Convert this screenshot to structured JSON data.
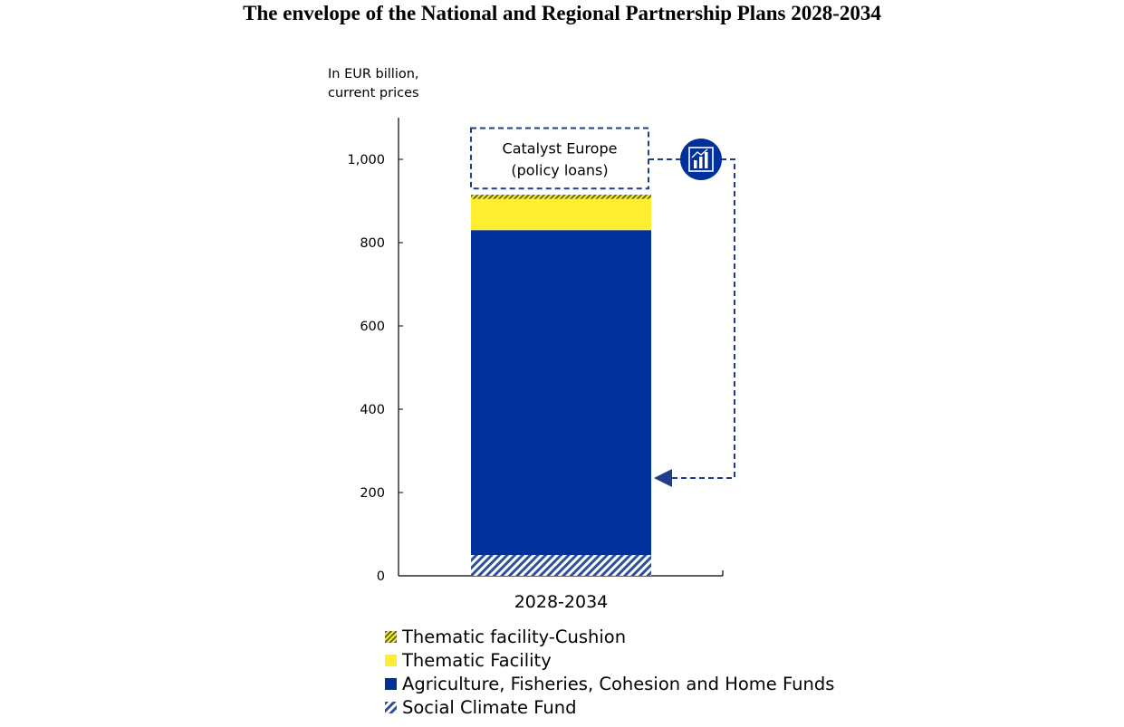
{
  "title": "The envelope of the National and Regional Partnership Plans 2028-2034",
  "unit_line1": "In EUR billion,",
  "unit_line2": "current prices",
  "colors": {
    "navy": "#00309A",
    "yellow": "#FFED31",
    "olive": "#5C6B1A",
    "hatch_blue": "#2F4F9A",
    "dash": "#1F3D8A"
  },
  "icon": "bar-chart-growth-icon",
  "chart_data": {
    "type": "bar",
    "categories": [
      "2028-2034"
    ],
    "ylim": [
      0,
      1100
    ],
    "yticks": [
      0,
      200,
      400,
      600,
      800,
      1000
    ],
    "ytick_labels": [
      "0",
      "200",
      "400",
      "600",
      "800",
      "1,000"
    ],
    "series": [
      {
        "name": "Social Climate Fund",
        "values": [
          50
        ]
      },
      {
        "name": "Agriculture, Fisheries, Cohesion and Home Funds",
        "values": [
          780
        ]
      },
      {
        "name": "Thematic Facility",
        "values": [
          75
        ]
      },
      {
        "name": "Thematic facility-Cushion",
        "values": [
          10
        ]
      }
    ],
    "extra_box": {
      "label_line1": "Catalyst Europe",
      "label_line2": "(policy loans)",
      "from": 930,
      "to": 1075
    }
  },
  "legend": [
    {
      "label": "Thematic facility-Cushion"
    },
    {
      "label": "Thematic Facility"
    },
    {
      "label": "Agriculture, Fisheries, Cohesion and Home Funds"
    },
    {
      "label": "Social Climate Fund"
    }
  ]
}
